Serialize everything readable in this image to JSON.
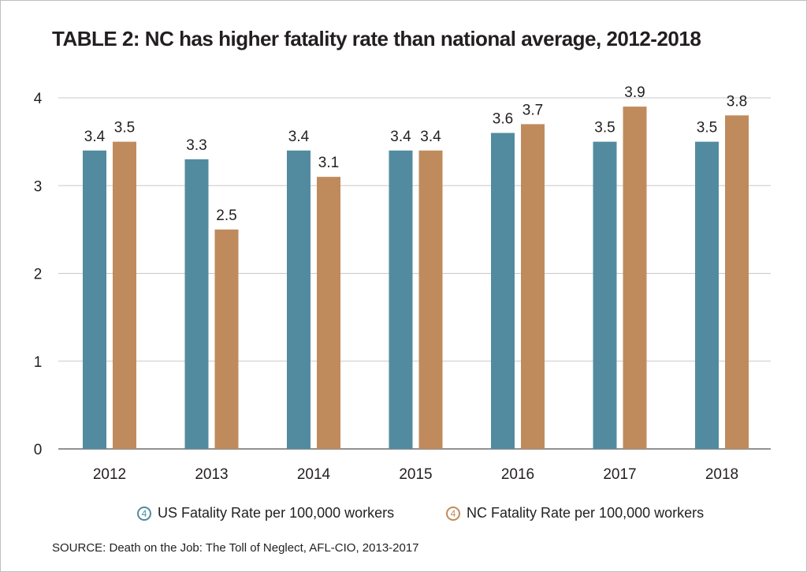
{
  "title": "TABLE 2:  NC has higher fatality rate than national average, 2012-2018",
  "source": "SOURCE: Death on the Job: The Toll of Neglect, AFL-CIO, 2013-2017",
  "chart_data": {
    "type": "bar",
    "title": "TABLE 2:  NC has higher fatality rate than national average, 2012-2018",
    "categories": [
      "2012",
      "2013",
      "2014",
      "2015",
      "2016",
      "2017",
      "2018"
    ],
    "series": [
      {
        "name": "US Fatality Rate per 100,000 workers",
        "marker": "4",
        "color": "#528ba0",
        "values": [
          3.4,
          3.3,
          3.4,
          3.4,
          3.6,
          3.5,
          3.5
        ],
        "labels": [
          "3.4",
          "3.3",
          "3.4",
          "3.4",
          "3.6",
          "3.5",
          "3.5"
        ]
      },
      {
        "name": "NC Fatality Rate per 100,000 workers",
        "marker": "4",
        "color": "#c08b5c",
        "values": [
          3.5,
          2.5,
          3.1,
          3.4,
          3.7,
          3.9,
          3.8
        ],
        "labels": [
          "3.5",
          "2.5",
          "3.1",
          "3.4",
          "3.7",
          "3.9",
          "3.8"
        ]
      }
    ],
    "yticks": [
      0,
      1,
      2,
      3,
      4
    ],
    "ylim": [
      0,
      4
    ],
    "grid": true,
    "legend": "bottom",
    "xlabel": "",
    "ylabel": ""
  }
}
